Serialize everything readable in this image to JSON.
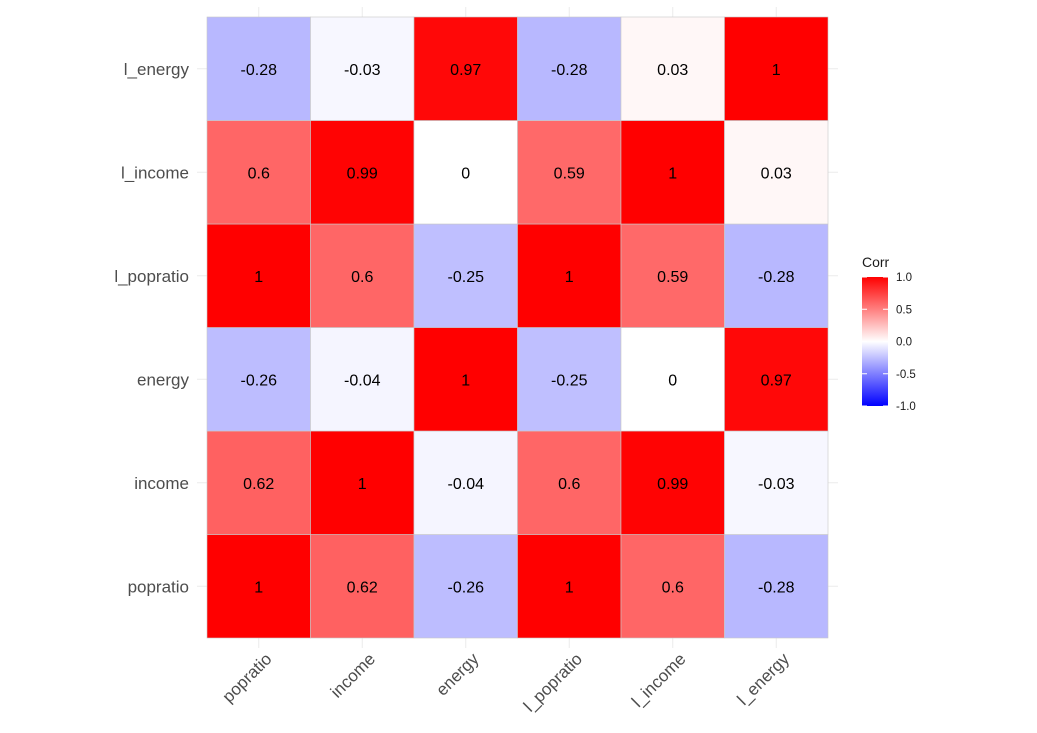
{
  "chart_data": {
    "type": "heatmap",
    "x_categories": [
      "popratio",
      "income",
      "energy",
      "l_popratio",
      "l_income",
      "l_energy"
    ],
    "y_categories": [
      "popratio",
      "income",
      "energy",
      "l_popratio",
      "l_income",
      "l_energy"
    ],
    "values": [
      [
        1,
        0.62,
        -0.26,
        1,
        0.6,
        -0.28
      ],
      [
        0.62,
        1,
        -0.04,
        0.6,
        0.99,
        -0.03
      ],
      [
        -0.26,
        -0.04,
        1,
        -0.25,
        0,
        0.97
      ],
      [
        1,
        0.6,
        -0.25,
        1,
        0.59,
        -0.28
      ],
      [
        0.6,
        0.99,
        0,
        0.59,
        1,
        0.03
      ],
      [
        -0.28,
        -0.03,
        0.97,
        -0.28,
        0.03,
        1
      ]
    ],
    "value_labels": [
      [
        "1",
        "0.62",
        "-0.26",
        "1",
        "0.6",
        "-0.28"
      ],
      [
        "0.62",
        "1",
        "-0.04",
        "0.6",
        "0.99",
        "-0.03"
      ],
      [
        "-0.26",
        "-0.04",
        "1",
        "-0.25",
        "0",
        "0.97"
      ],
      [
        "1",
        "0.6",
        "-0.25",
        "1",
        "0.59",
        "-0.28"
      ],
      [
        "0.6",
        "0.99",
        "0",
        "0.59",
        "1",
        "0.03"
      ],
      [
        "-0.28",
        "-0.03",
        "0.97",
        "-0.28",
        "0.03",
        "1"
      ]
    ],
    "color_scale": {
      "low": "#0000ff",
      "mid": "#ffffff",
      "high": "#ff0000",
      "limits": [
        -1,
        1
      ]
    },
    "legend": {
      "title": "Corr",
      "position": "right",
      "ticks": [
        1.0,
        0.5,
        0.0,
        -0.5,
        -1.0
      ],
      "tick_labels": [
        "1.0",
        "0.5",
        "0.0",
        "-0.5",
        "-1.0"
      ]
    },
    "grid": true,
    "x_tick_rotation": "45 degrees"
  }
}
